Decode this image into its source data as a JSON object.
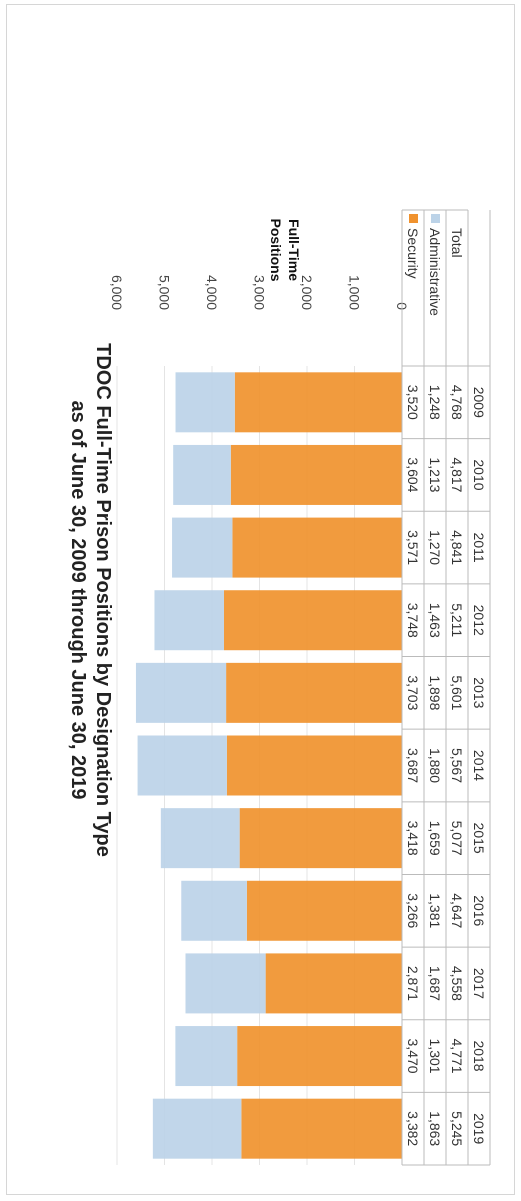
{
  "chart_data": {
    "type": "bar",
    "stacked": true,
    "title": "TDOC  Full-Time Prison Positions by Designation Type",
    "subtitle": "as of June 30, 2009 through June 30, 2019",
    "ylabel": "Full-Time Positions",
    "ylim": [
      0,
      6000
    ],
    "yticks": [
      "0",
      "1,000",
      "2,000",
      "3,000",
      "4,000",
      "5,000",
      "6,000"
    ],
    "categories": [
      "2009",
      "2010",
      "2011",
      "2012",
      "2013",
      "2014",
      "2015",
      "2016",
      "2017",
      "2018",
      "2019"
    ],
    "series": [
      {
        "name": "Security",
        "color": "#f0922e",
        "values": [
          3520,
          3604,
          3571,
          3748,
          3703,
          3687,
          3418,
          3266,
          2871,
          3470,
          3382
        ],
        "labels": [
          "3,520",
          "3,604",
          "3,571",
          "3,748",
          "3,703",
          "3,687",
          "3,418",
          "3,266",
          "2,871",
          "3,470",
          "3,382"
        ]
      },
      {
        "name": "Administrative",
        "color": "#bcd3e8",
        "values": [
          1248,
          1213,
          1270,
          1463,
          1898,
          1880,
          1659,
          1381,
          1687,
          1301,
          1863
        ],
        "labels": [
          "1,248",
          "1,213",
          "1,270",
          "1,463",
          "1,898",
          "1,880",
          "1,659",
          "1,381",
          "1,687",
          "1,301",
          "1,863"
        ]
      }
    ],
    "table": {
      "row_labels": [
        "Total",
        "Administrative",
        "Security"
      ],
      "total_labels": [
        "4,768",
        "4,817",
        "4,841",
        "5,211",
        "5,601",
        "5,567",
        "5,077",
        "4,647",
        "4,558",
        "4,771",
        "5,245"
      ]
    },
    "rotated": "90deg clockwise"
  }
}
